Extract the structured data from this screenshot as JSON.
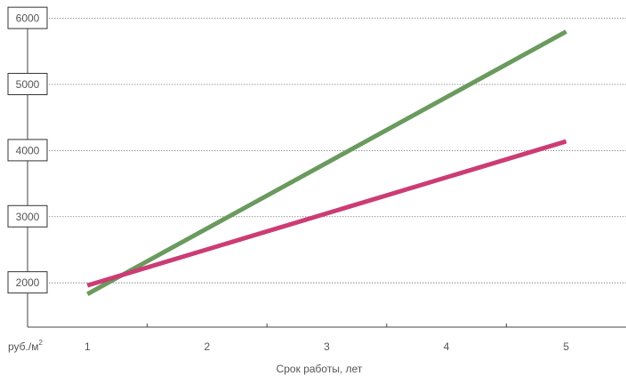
{
  "chart_data": {
    "type": "line",
    "x": [
      1,
      5
    ],
    "series": [
      {
        "values": [
          1830,
          5800
        ],
        "color": "#6a9a5e"
      },
      {
        "values": [
          1960,
          4140
        ],
        "color": "#cc3c74"
      }
    ],
    "x_ticks": [
      "1",
      "2",
      "3",
      "4",
      "5"
    ],
    "y_ticks": [
      2000,
      3000,
      4000,
      5000,
      6000
    ],
    "y_unit": "руб./м",
    "y_unit_sup": "2",
    "xlabel": "Срок работы, лет",
    "xlim": [
      0.5,
      5.5
    ],
    "ylim": [
      1330,
      6170
    ],
    "grid": true
  }
}
